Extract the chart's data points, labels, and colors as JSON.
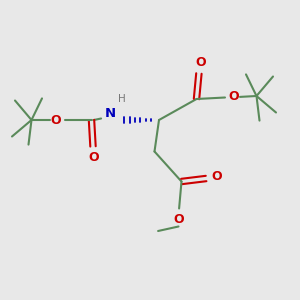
{
  "bg_color": "#e8e8e8",
  "bond_color": "#5a8a5a",
  "o_color": "#cc0000",
  "n_color": "#0000bb",
  "h_color": "#777777",
  "line_width": 1.5,
  "fig_size": [
    3.0,
    3.0
  ],
  "dpi": 100,
  "xlim": [
    0,
    10
  ],
  "ylim": [
    0,
    10
  ]
}
